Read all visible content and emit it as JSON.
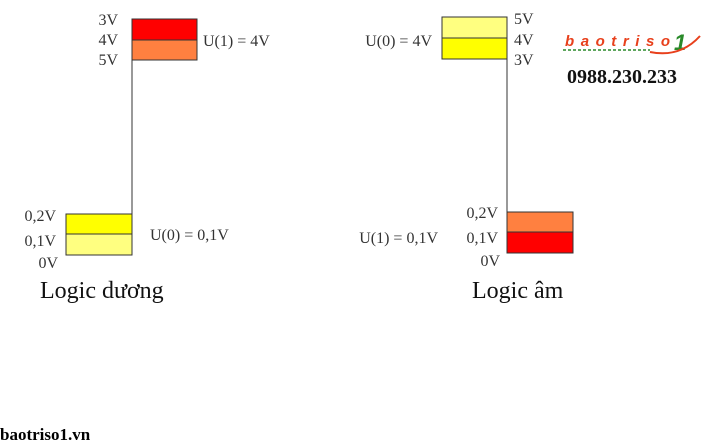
{
  "colors": {
    "red": "#ff0000",
    "orange": "#ff8040",
    "yellow": "#ffff00",
    "light_yellow": "#ffff80",
    "logo_red": "#e8401c",
    "logo_green": "#2a8a2a"
  },
  "positive": {
    "caption": "Logic dương",
    "high_ticks": [
      "3V",
      "4V",
      "5V"
    ],
    "high_label": "U(1) = 4V",
    "low_ticks": [
      "0,2V",
      "0,1V",
      "0V"
    ],
    "low_label": "U(0) = 0,1V"
  },
  "negative": {
    "caption": "Logic âm",
    "high_ticks": [
      "5V",
      "4V",
      "3V"
    ],
    "high_label": "U(0) = 4V",
    "low_ticks": [
      "0,2V",
      "0,1V",
      "0V"
    ],
    "low_label": "U(1) = 0,1V"
  },
  "brand": {
    "logo_text": "baotriso1",
    "phone": "0988.230.233",
    "site": "baotriso1.vn"
  }
}
